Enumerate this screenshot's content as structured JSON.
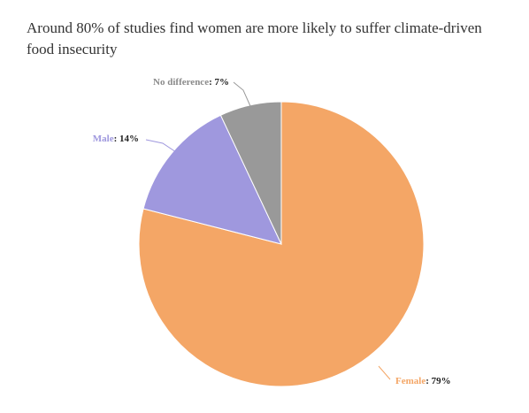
{
  "chart_data": {
    "type": "pie",
    "title": "Around 80% of studies find women are more likely to suffer climate-driven food insecurity",
    "slices": [
      {
        "name": "Female",
        "value": 79,
        "label": "79%",
        "color": "#f4a666"
      },
      {
        "name": "Male",
        "value": 14,
        "label": "14%",
        "color": "#9f98de"
      },
      {
        "name": "No difference",
        "value": 7,
        "label": "7%",
        "color": "#999999"
      }
    ],
    "start_angle_deg": 0,
    "direction": "clockwise",
    "slice_border_color": "#ffffff"
  }
}
